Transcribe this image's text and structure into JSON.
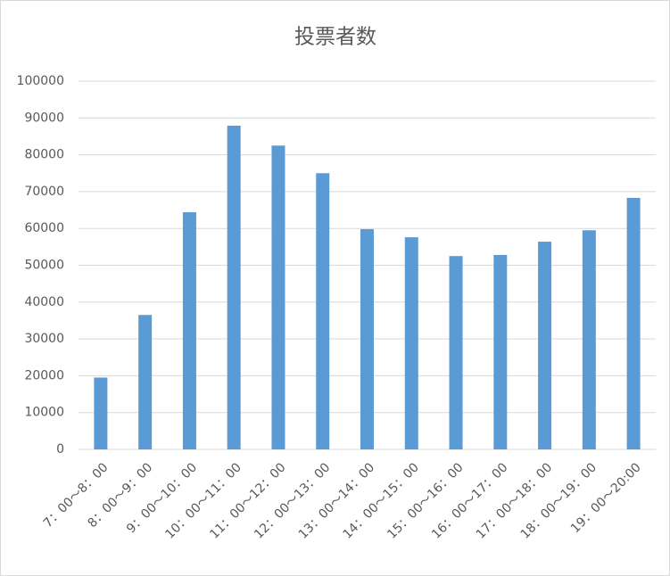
{
  "chart_data": {
    "type": "bar",
    "title": "投票者数",
    "categories": [
      "7：00～8：00",
      "8：00～9：00",
      "9：00～10：00",
      "10：00～11：00",
      "11：00～12：00",
      "12：00～13：00",
      "13：00～14：00",
      "14：00～15：00",
      "15：00～16：00",
      "16：00～17：00",
      "17：00～18：00",
      "18：00～19：00",
      "19：00～20:00"
    ],
    "values": [
      19500,
      36500,
      64400,
      87900,
      82500,
      75000,
      59800,
      57600,
      52500,
      52800,
      56400,
      59500,
      68300
    ],
    "color": "#5b9bd5",
    "ylim": [
      0,
      100000
    ],
    "yticks": [
      0,
      10000,
      20000,
      30000,
      40000,
      50000,
      60000,
      70000,
      80000,
      90000,
      100000
    ],
    "grid": true
  }
}
